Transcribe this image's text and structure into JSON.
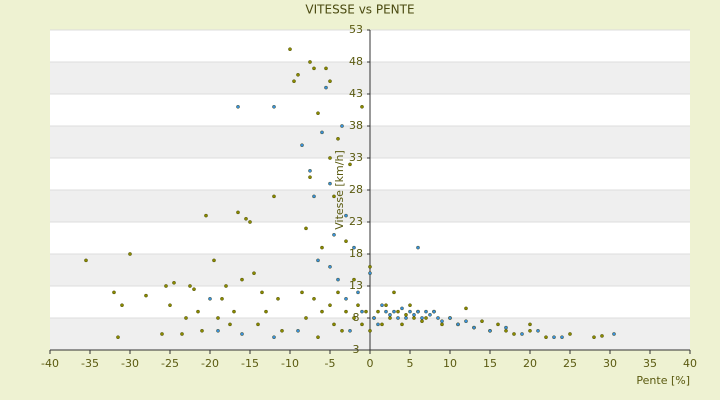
{
  "chart_data": {
    "type": "scatter",
    "title": "VITESSE vs PENTE",
    "x_label": "Pente [%]",
    "y_label": "Vitesse [km/h]",
    "xlim": [
      -40,
      40
    ],
    "xticks": [
      -40,
      -35,
      -30,
      -25,
      -20,
      -15,
      -10,
      -5,
      0,
      5,
      10,
      15,
      20,
      25,
      30,
      35,
      40
    ],
    "ylim": [
      3,
      53
    ],
    "yticks": [
      3,
      8,
      13,
      18,
      23,
      28,
      33,
      38,
      43,
      48,
      53
    ],
    "grid": true,
    "series": [
      {
        "color": "#8a8a00",
        "x": [
          -35.5,
          -32,
          -31.5,
          -31,
          -30,
          -28,
          -26,
          -25.5,
          -25,
          -24.5,
          -23.5,
          -23,
          -22.5,
          -22,
          -21.5,
          -21,
          -20.5,
          -19.5,
          -19,
          -18.5,
          -18,
          -17.5,
          -17,
          -16.5,
          -16,
          -15.5,
          -15,
          -14.5,
          -14,
          -13.5,
          -13,
          -12,
          -11.5,
          -11,
          -10,
          -9.5,
          -9,
          -8.5,
          -8,
          -8,
          -7.5,
          -7.5,
          -7,
          -7,
          -6.5,
          -6.5,
          -6,
          -6,
          -5.5,
          -5,
          -5,
          -5,
          -4.5,
          -4.5,
          -4,
          -4,
          -3.5,
          -3,
          -3,
          -2.5,
          -2,
          -2,
          -1.5,
          -1,
          -1,
          -0.5,
          0,
          0,
          0.5,
          1,
          1.5,
          2,
          2.5,
          3,
          3.5,
          4,
          4.5,
          5,
          5.5,
          6,
          6.5,
          7,
          8,
          9,
          10,
          11,
          12,
          13,
          14,
          15,
          16,
          17,
          18,
          20,
          20,
          22,
          25,
          28,
          29
        ],
        "values": [
          17,
          12,
          5,
          10,
          18,
          11.5,
          5.5,
          13,
          10,
          13.5,
          5.5,
          8,
          13,
          12.5,
          9,
          6,
          24,
          17,
          8,
          11,
          13,
          7,
          9,
          24.5,
          14,
          23.5,
          23,
          15,
          7,
          12,
          9,
          27,
          11,
          6,
          50,
          45,
          46,
          12,
          22,
          8,
          48,
          30,
          47,
          11,
          5,
          40,
          19,
          9,
          47,
          45,
          33,
          10,
          7,
          27,
          36,
          12,
          6,
          20,
          9,
          32,
          8,
          14,
          10,
          7,
          41,
          9,
          6,
          16,
          8,
          9,
          7,
          10,
          8,
          12,
          9,
          7,
          8.5,
          10,
          8,
          9,
          7.5,
          8,
          9,
          7,
          8,
          7,
          9.5,
          6.5,
          7.5,
          6,
          7,
          6,
          5.5,
          6,
          7,
          5,
          5.5,
          5,
          5.2
        ]
      },
      {
        "color": "#3a8fd9",
        "x": [
          -16.5,
          -12,
          -8.5,
          -7.5,
          -7,
          -6.5,
          -6,
          -5.5,
          -5,
          -5,
          -4.5,
          -4,
          -3.5,
          -3,
          -3,
          -2.5,
          -2,
          -1.5,
          -1,
          0,
          0.5,
          1,
          1.5,
          2,
          2.5,
          3,
          3.5,
          4,
          4.5,
          5,
          5.5,
          6,
          6,
          6.5,
          7,
          7.5,
          8,
          8.5,
          9,
          10,
          11,
          12,
          13,
          15,
          17,
          19,
          21,
          23,
          24,
          30.5,
          -16,
          -19,
          -12,
          -9,
          -20
        ],
        "values": [
          41,
          41,
          35,
          31,
          27,
          17,
          37,
          44,
          29,
          16,
          21,
          14,
          38,
          24,
          11,
          6,
          19,
          12,
          9,
          15,
          8,
          7,
          10,
          9,
          8.5,
          9,
          8,
          9.5,
          8,
          9,
          8.5,
          19,
          9,
          8,
          9,
          8.5,
          9,
          8,
          7.5,
          8,
          7,
          7.5,
          6.5,
          6,
          6.5,
          5.5,
          6,
          5,
          5,
          5.5,
          5.5,
          6,
          5,
          6,
          11
        ]
      }
    ]
  }
}
